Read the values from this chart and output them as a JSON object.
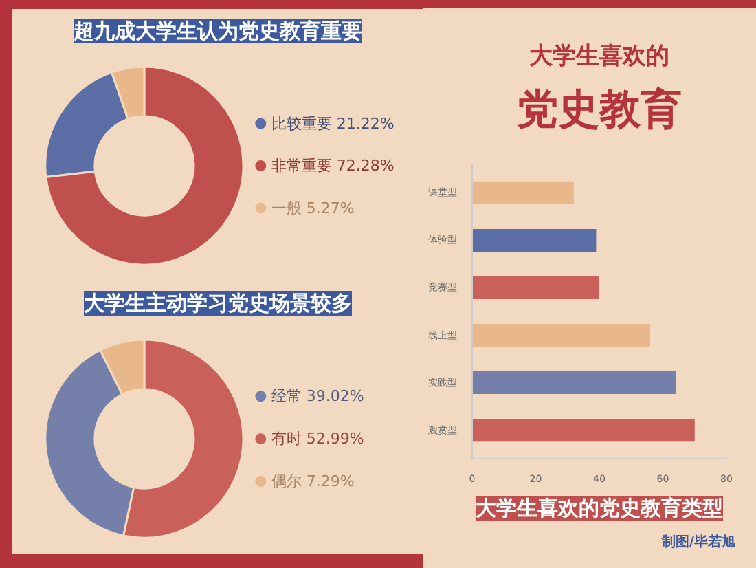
{
  "chart_data": [
    {
      "type": "donut",
      "title": "超九成大学生认为党史教育重要",
      "categories": [
        "比较重要",
        "非常重要",
        "一般"
      ],
      "values": [
        21.22,
        72.28,
        5.27
      ],
      "value_labels": [
        "21.22%",
        "72.28%",
        "5.27%"
      ],
      "colors": [
        "#5b6ea6",
        "#c0504d",
        "#e8b88a"
      ],
      "legend": "right"
    },
    {
      "type": "other",
      "title": "大学生喜欢的",
      "subtitle": "党史教育"
    },
    {
      "type": "donut",
      "title": "大学生主动学习党史场景较多",
      "categories": [
        "经常",
        "有时",
        "偶尔"
      ],
      "values": [
        39.02,
        52.99,
        7.29
      ],
      "value_labels": [
        "39.02%",
        "52.99%",
        "7.29%"
      ],
      "colors": [
        "#7480aa",
        "#c9605a",
        "#e8b88a"
      ],
      "legend": "right"
    },
    {
      "type": "bar",
      "orientation": "horizontal",
      "title": "大学生喜欢的党史教育类型",
      "categories": [
        "课堂型",
        "体验型",
        "竞赛型",
        "线上型",
        "实践型",
        "观赏型"
      ],
      "values": [
        32,
        39,
        40,
        56,
        64,
        70
      ],
      "colors": [
        "#e8b88a",
        "#5b6ea6",
        "#c9605a",
        "#e8b88a",
        "#7480aa",
        "#c9605a"
      ],
      "xlim": [
        0,
        80
      ],
      "xticks": [
        0,
        20,
        40,
        60,
        80
      ],
      "grid": false,
      "annotations": [
        "制图/毕若旭"
      ]
    }
  ]
}
